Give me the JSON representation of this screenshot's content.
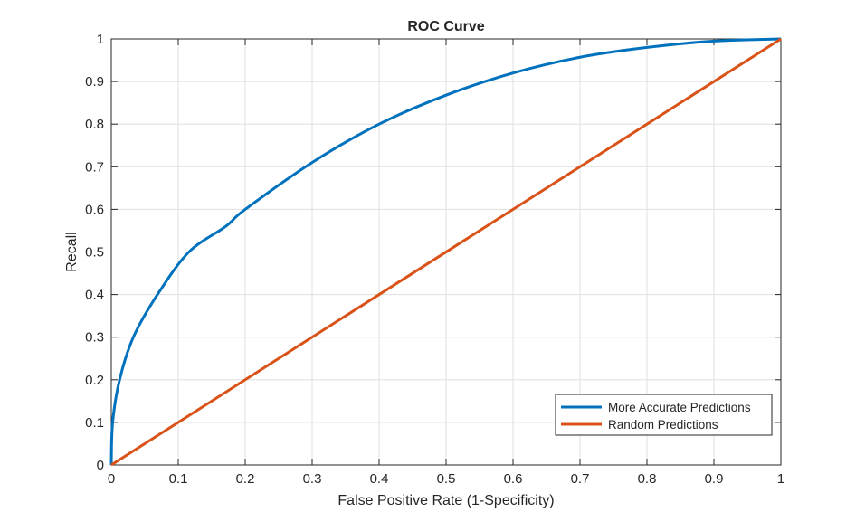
{
  "chart_data": {
    "type": "line",
    "title": "ROC Curve",
    "xlabel": "False Positive Rate (1-Specificity)",
    "ylabel": "Recall",
    "xlim": [
      0,
      1
    ],
    "ylim": [
      0,
      1
    ],
    "xticks": [
      "0",
      "0.1",
      "0.2",
      "0.3",
      "0.4",
      "0.5",
      "0.6",
      "0.7",
      "0.8",
      "0.9",
      "1"
    ],
    "yticks": [
      "0",
      "0.1",
      "0.2",
      "0.3",
      "0.4",
      "0.5",
      "0.6",
      "0.7",
      "0.8",
      "0.9",
      "1"
    ],
    "grid": true,
    "legend_position": "bottom-right",
    "series": [
      {
        "name": "More Accurate Predictions",
        "color": "#0072BD",
        "x": [
          0,
          0.002,
          0.0124,
          0.033,
          0.069,
          0.116,
          0.171,
          0.2,
          0.3,
          0.4,
          0.5,
          0.6,
          0.7,
          0.8,
          0.9,
          1
        ],
        "y": [
          0,
          0.1,
          0.2,
          0.3,
          0.4,
          0.5,
          0.56,
          0.6,
          0.71,
          0.8,
          0.868,
          0.92,
          0.957,
          0.98,
          0.995,
          1
        ]
      },
      {
        "name": "Random Predictions",
        "color": "#D95319",
        "x": [
          0,
          1
        ],
        "y": [
          0,
          1
        ]
      }
    ]
  }
}
